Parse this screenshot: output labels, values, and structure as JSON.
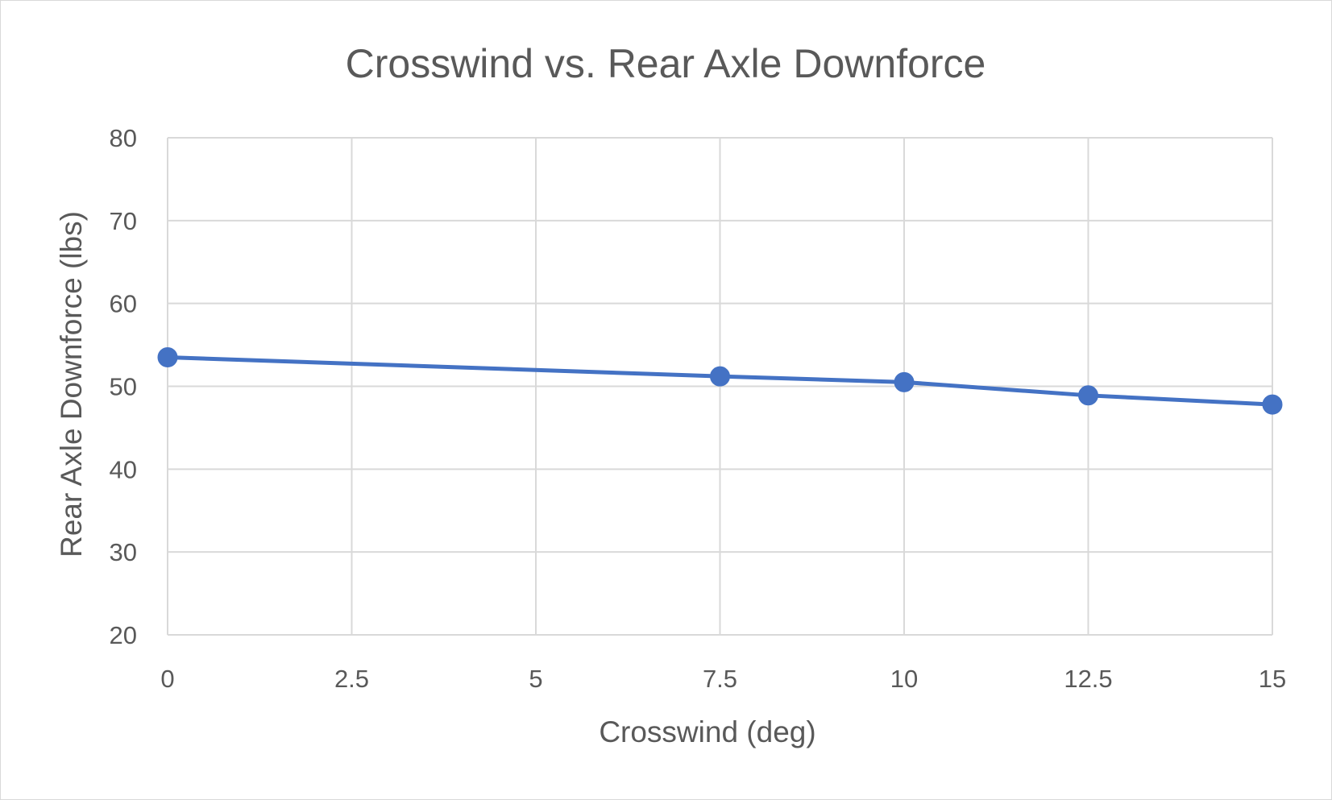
{
  "chart_data": {
    "type": "scatter",
    "title": "Crosswind vs. Rear Axle Downforce",
    "xlabel": "Crosswind (deg)",
    "ylabel": "Rear Axle Downforce (lbs)",
    "xlim": [
      0,
      15
    ],
    "ylim": [
      20,
      80
    ],
    "x_ticks": [
      0,
      2.5,
      5,
      7.5,
      10,
      12.5,
      15
    ],
    "x_tick_labels": [
      "0",
      "2.5",
      "5",
      "7.5",
      "10",
      "12.5",
      "15"
    ],
    "y_ticks": [
      20,
      30,
      40,
      50,
      60,
      70,
      80
    ],
    "y_tick_labels": [
      "20",
      "30",
      "40",
      "50",
      "60",
      "70",
      "80"
    ],
    "grid": true,
    "legend": "none",
    "series": [
      {
        "color": "#4472c4",
        "mode": "lines+markers",
        "x": [
          0,
          7.5,
          10,
          12.5,
          15
        ],
        "y": [
          53.5,
          51.2,
          50.5,
          48.9,
          47.8
        ]
      }
    ]
  }
}
